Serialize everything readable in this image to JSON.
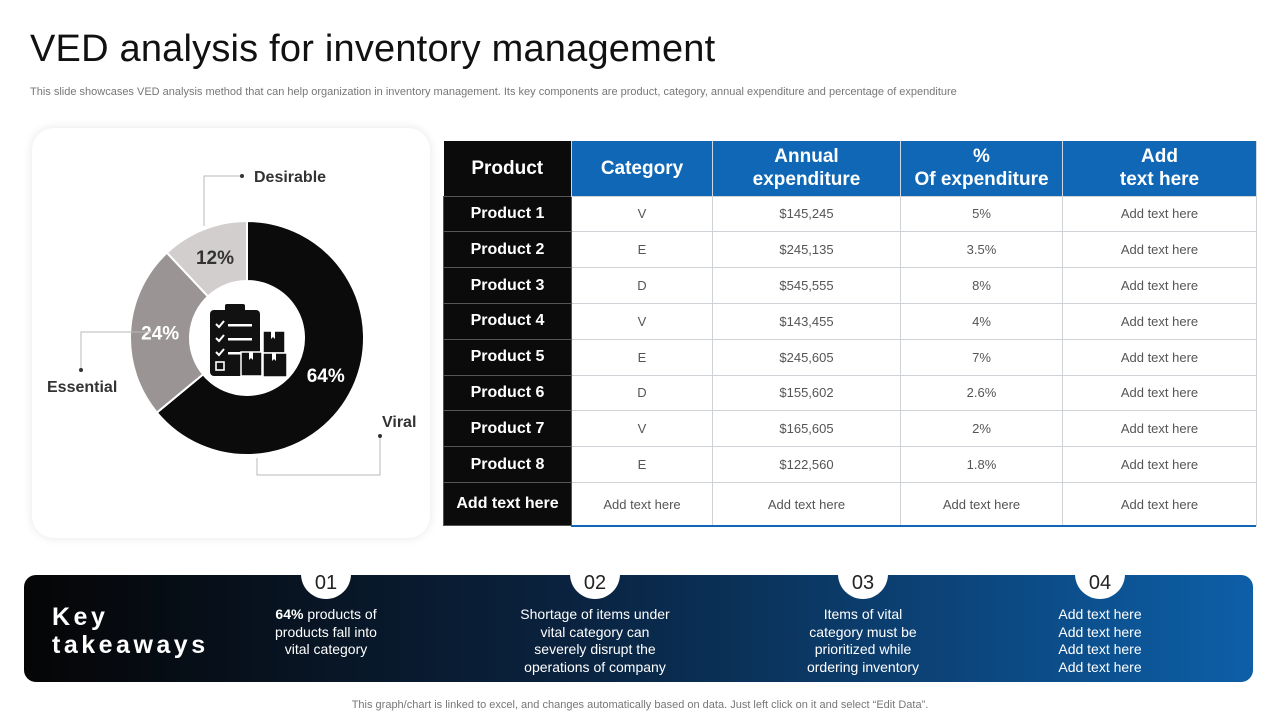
{
  "slide": {
    "title": "VED analysis for inventory management",
    "subtitle": "This slide showcases VED analysis method that can help organization in inventory management. Its key components are product, category, annual expenditure and percentage of expenditure",
    "footnote": "This graph/chart is linked to excel,  and changes automatically based on data. Just left click on it and select “Edit Data”."
  },
  "chart_data": {
    "type": "pie",
    "variant": "donut",
    "categories": [
      "Viral",
      "Essential",
      "Desirable"
    ],
    "values": [
      64,
      24,
      12
    ],
    "labels": [
      "64%",
      "24%",
      "12%"
    ],
    "colors": [
      "#0b0b0b",
      "#9b9494",
      "#d3cece"
    ],
    "center_icon": "clipboard-inventory-icon"
  },
  "table": {
    "headers": [
      "Product",
      "Category",
      "Annual expenditure",
      "% Of expenditure",
      "Add text here"
    ],
    "header_lines": [
      [
        "Product"
      ],
      [
        "Category"
      ],
      [
        "Annual",
        "expenditure"
      ],
      [
        "%",
        "Of expenditure"
      ],
      [
        "Add",
        "text here"
      ]
    ],
    "rows": [
      [
        "Product 1",
        "V",
        "$145,245",
        "5%",
        "Add text here"
      ],
      [
        "Product 2",
        "E",
        "$245,135",
        "3.5%",
        "Add text here"
      ],
      [
        "Product 3",
        "D",
        "$545,555",
        "8%",
        "Add text here"
      ],
      [
        "Product 4",
        "V",
        "$143,455",
        "4%",
        "Add text here"
      ],
      [
        "Product 5",
        "E",
        "$245,605",
        "7%",
        "Add text here"
      ],
      [
        "Product 6",
        "D",
        "$155,602",
        "2.6%",
        "Add text here"
      ],
      [
        "Product 7",
        "V",
        "$165,605",
        "2%",
        "Add text here"
      ],
      [
        "Product 8",
        "E",
        "$122,560",
        "1.8%",
        "Add text here"
      ],
      [
        "Add text here",
        "Add text here",
        "Add text here",
        "Add text here",
        "Add text here"
      ]
    ],
    "colors": {
      "header_blue": "#0f67b6",
      "product_black": "#0b0b0b"
    }
  },
  "takeaways": {
    "label_line1": "Key",
    "label_line2": "takeaways",
    "items": [
      {
        "num": "01",
        "bold": "64%",
        "lines": [
          " products of",
          "products fall into",
          "vital category"
        ]
      },
      {
        "num": "02",
        "bold": "",
        "lines": [
          "Shortage of items under",
          "vital category can",
          "severely disrupt the",
          "operations of company"
        ]
      },
      {
        "num": "03",
        "bold": "",
        "lines": [
          "Items of vital",
          "category must be",
          "prioritized while",
          "ordering inventory"
        ]
      },
      {
        "num": "04",
        "bold": "",
        "lines": [
          "Add text here",
          "Add text here",
          "Add text here",
          "Add text here"
        ]
      }
    ]
  }
}
